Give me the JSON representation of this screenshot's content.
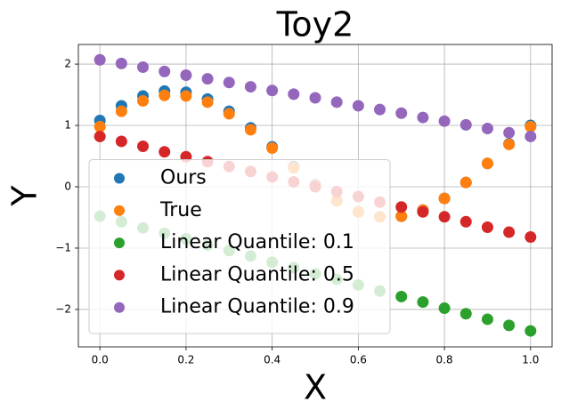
{
  "chart_data": {
    "type": "scatter",
    "title": "Toy2",
    "x_label": "X",
    "y_label": "Y",
    "x": [
      0,
      0.05,
      0.1,
      0.15,
      0.2,
      0.25,
      0.3,
      0.35,
      0.4,
      0.45,
      0.5,
      0.55,
      0.6,
      0.65,
      0.7,
      0.75,
      0.8,
      0.85,
      0.9,
      0.95,
      1.0
    ],
    "series": [
      {
        "name": "Ours",
        "color": "#1f77b4",
        "values": [
          1.08,
          1.32,
          1.48,
          1.56,
          1.54,
          1.43,
          1.23,
          0.96,
          0.65,
          0.33,
          0.03,
          -0.23,
          -0.41,
          -0.49,
          -0.48,
          -0.38,
          -0.19,
          0.07,
          0.38,
          0.7,
          1.0
        ]
      },
      {
        "name": "True",
        "color": "#ff7f0e",
        "values": [
          0.98,
          1.23,
          1.4,
          1.49,
          1.48,
          1.38,
          1.19,
          0.93,
          0.63,
          0.31,
          0.02,
          -0.23,
          -0.41,
          -0.49,
          -0.48,
          -0.38,
          -0.19,
          0.07,
          0.38,
          0.69,
          0.98
        ]
      },
      {
        "name": "Linear Quantile: 0.1",
        "color": "#2ca02c",
        "values": [
          -0.48,
          -0.57,
          -0.67,
          -0.76,
          -0.85,
          -0.95,
          -1.04,
          -1.13,
          -1.23,
          -1.32,
          -1.42,
          -1.51,
          -1.6,
          -1.7,
          -1.79,
          -1.88,
          -1.98,
          -2.07,
          -2.16,
          -2.26,
          -2.35
        ]
      },
      {
        "name": "Linear Quantile: 0.5",
        "color": "#d62728",
        "values": [
          0.82,
          0.74,
          0.66,
          0.57,
          0.49,
          0.41,
          0.33,
          0.25,
          0.16,
          0.08,
          0.0,
          -0.08,
          -0.16,
          -0.25,
          -0.33,
          -0.41,
          -0.49,
          -0.57,
          -0.66,
          -0.74,
          -0.82
        ]
      },
      {
        "name": "Linear Quantile: 0.9",
        "color": "#9467bd",
        "values": [
          2.07,
          2.01,
          1.95,
          1.88,
          1.82,
          1.76,
          1.7,
          1.63,
          1.57,
          1.51,
          1.45,
          1.38,
          1.32,
          1.26,
          1.2,
          1.13,
          1.07,
          1.01,
          0.95,
          0.88,
          0.82
        ]
      }
    ],
    "xlim": [
      -0.05,
      1.05
    ],
    "ylim": [
      -2.61,
      2.32
    ],
    "xticks": [
      {
        "value": 0,
        "label": "0.0"
      },
      {
        "value": 0.2,
        "label": "0.2"
      },
      {
        "value": 0.4,
        "label": "0.4"
      },
      {
        "value": 0.6,
        "label": "0.6"
      },
      {
        "value": 0.8,
        "label": "0.8"
      },
      {
        "value": 1.0,
        "label": "1.0"
      }
    ],
    "yticks": [
      {
        "value": -2,
        "label": "−2"
      },
      {
        "value": -1,
        "label": "−1"
      },
      0,
      1,
      2
    ],
    "grid": true,
    "legend": "lower left"
  }
}
